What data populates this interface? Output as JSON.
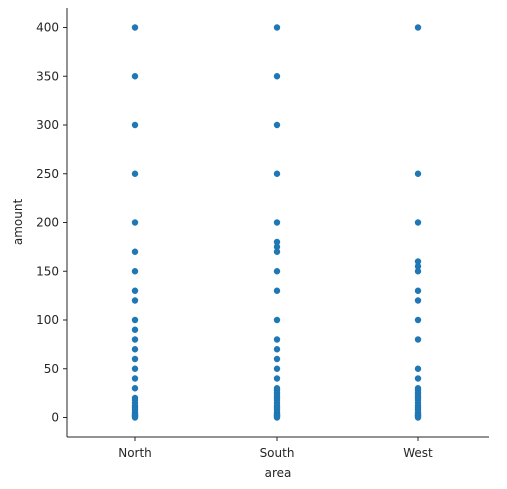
{
  "chart_data": {
    "type": "scatter",
    "title": "",
    "xlabel": "area",
    "ylabel": "amount",
    "categories": [
      "North",
      "South",
      "West"
    ],
    "ylim": [
      -20,
      420
    ],
    "yticks": [
      0,
      50,
      100,
      150,
      200,
      250,
      300,
      350,
      400
    ],
    "grid": false,
    "point_color": "#1f77b4",
    "series": [
      {
        "category": "North",
        "values": [
          400,
          350,
          300,
          250,
          200,
          170,
          150,
          130,
          120,
          100,
          90,
          80,
          70,
          60,
          50,
          40,
          30,
          20,
          18,
          15,
          12,
          10,
          8,
          5,
          3,
          2,
          1,
          0
        ]
      },
      {
        "category": "South",
        "values": [
          400,
          350,
          300,
          250,
          200,
          180,
          175,
          170,
          150,
          130,
          100,
          80,
          70,
          60,
          50,
          40,
          30,
          28,
          25,
          22,
          20,
          18,
          15,
          12,
          10,
          8,
          5,
          3,
          2,
          1,
          0
        ]
      },
      {
        "category": "West",
        "values": [
          400,
          250,
          200,
          160,
          155,
          150,
          130,
          120,
          100,
          80,
          50,
          40,
          30,
          28,
          25,
          22,
          20,
          18,
          15,
          12,
          10,
          8,
          5,
          3,
          2,
          1,
          0
        ]
      }
    ]
  }
}
